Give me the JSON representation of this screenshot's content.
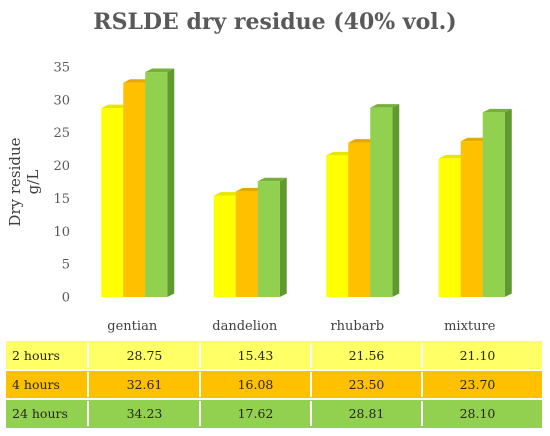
{
  "chart_data": {
    "type": "bar",
    "title": "RSLDE dry residue (40% vol.)",
    "ylabel": [
      "Dry residue",
      "g/L"
    ],
    "xlabel": "",
    "ylim": [
      0,
      35
    ],
    "yticks": [
      0,
      5,
      10,
      15,
      20,
      25,
      30,
      35
    ],
    "categories": [
      "gentian",
      "dandelion",
      "rhubarb",
      "mixture"
    ],
    "series": [
      {
        "name": "2 hours",
        "values": [
          28.75,
          15.43,
          21.56,
          21.1
        ],
        "labels": [
          "28.75",
          "15.43",
          "21.56",
          "21.10"
        ],
        "color": "#FFFF00",
        "side": "#C8C800",
        "top": "#E6E600",
        "row_bg": "#FFFF66"
      },
      {
        "name": "4 hours",
        "values": [
          32.61,
          16.08,
          23.5,
          23.7
        ],
        "labels": [
          "32.61",
          "16.08",
          "23.50",
          "23.70"
        ],
        "color": "#FFC000",
        "side": "#C99200",
        "top": "#E6A800",
        "row_bg": "#FFC000"
      },
      {
        "name": "24 hours",
        "values": [
          34.23,
          17.62,
          28.81,
          28.1
        ],
        "labels": [
          "34.23",
          "17.62",
          "28.81",
          "28.10"
        ],
        "color": "#92D050",
        "side": "#5E9A2E",
        "top": "#76B03A",
        "row_bg": "#92D050"
      }
    ],
    "grid": false,
    "legend": "data-table"
  }
}
